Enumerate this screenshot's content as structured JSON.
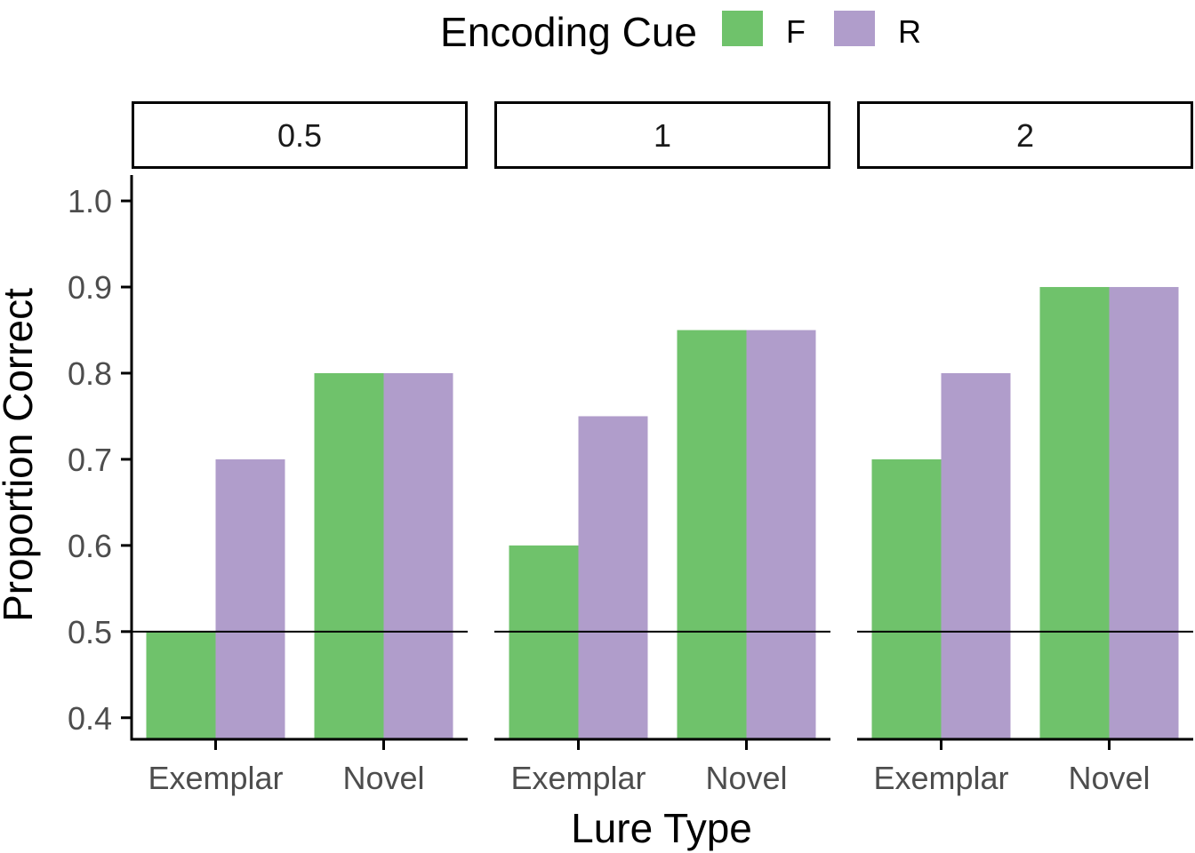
{
  "chart_data": {
    "type": "bar",
    "legend": {
      "title": "Encoding Cue",
      "placement": "top",
      "entries": [
        {
          "label": "F",
          "color": "#6fc26b"
        },
        {
          "label": "R",
          "color": "#b09dcb"
        }
      ]
    },
    "facets": [
      "0.5",
      "1",
      "2"
    ],
    "categories": [
      "Exemplar",
      "Novel"
    ],
    "series": [
      {
        "name": "F",
        "color": "#6fc26b",
        "values": [
          [
            0.5,
            0.8
          ],
          [
            0.6,
            0.85
          ],
          [
            0.7,
            0.9
          ]
        ]
      },
      {
        "name": "R",
        "color": "#b09dcb",
        "values": [
          [
            0.7,
            0.8
          ],
          [
            0.75,
            0.85
          ],
          [
            0.8,
            0.9
          ]
        ]
      }
    ],
    "reference_line": 0.5,
    "ylim": [
      0.375,
      1.03
    ],
    "yticks": [
      "0.4",
      "0.5",
      "0.6",
      "0.7",
      "0.8",
      "0.9",
      "1.0"
    ],
    "xlabel": "Lure Type",
    "ylabel": "Proportion Correct",
    "grid": false
  }
}
